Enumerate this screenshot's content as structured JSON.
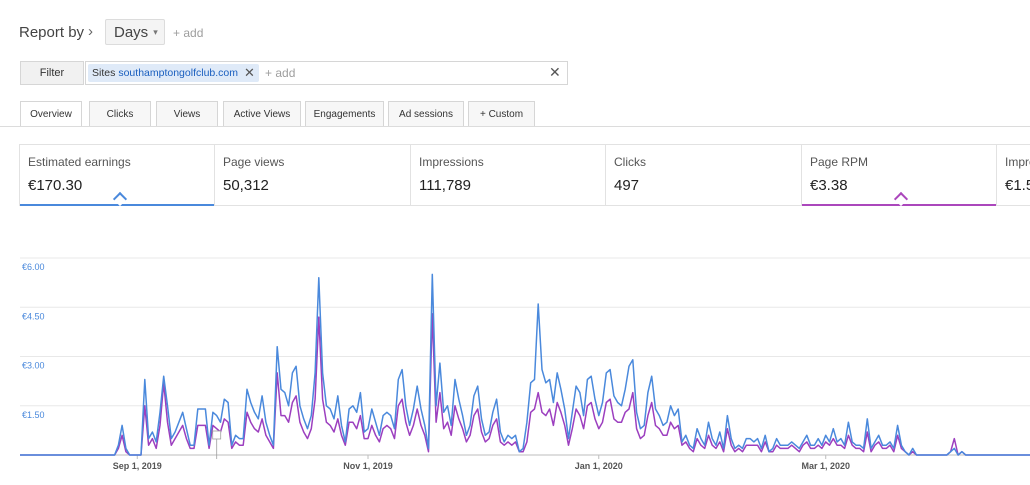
{
  "report": {
    "label": "Report by",
    "chevron": "›",
    "dimension": "Days",
    "caret": "▾",
    "add": "+ add"
  },
  "filter": {
    "button_label": "Filter",
    "chip_key": "Sites",
    "chip_value": "southamptongolfclub.com",
    "chip_remove": "✕",
    "add": "+ add",
    "clear": "✕"
  },
  "tabs": [
    {
      "label": "Overview",
      "active": true
    },
    {
      "label": "Clicks"
    },
    {
      "label": "Views"
    },
    {
      "label": "Active Views"
    },
    {
      "label": "Engagements"
    },
    {
      "label": "Ad sessions"
    },
    {
      "label": "+ Custom"
    }
  ],
  "cards": [
    {
      "label": "Estimated earnings",
      "value": "€170.30",
      "selected_color": "#4a89dc"
    },
    {
      "label": "Page views",
      "value": "50,312"
    },
    {
      "label": "Impressions",
      "value": "111,789"
    },
    {
      "label": "Clicks",
      "value": "497"
    },
    {
      "label": "Page RPM",
      "value": "€3.38",
      "selected_color": "#ab47bc"
    },
    {
      "label": "Impre",
      "value": "€1.5"
    }
  ],
  "colors": {
    "earnings": "#4a89dc",
    "rpm": "#9c3fbf",
    "grid": "#e8e8e8"
  },
  "chart_data": {
    "type": "line",
    "ylim": [
      0,
      6
    ],
    "yticks": [
      "€6.00",
      "€4.50",
      "€3.00",
      "€1.50"
    ],
    "ytick_values": [
      6,
      4.5,
      3,
      1.5
    ],
    "xticks": [
      "Sep 1, 2019",
      "Nov 1, 2019",
      "Jan 1, 2020",
      "Mar 1, 2020"
    ],
    "x_start": "2019-08-01",
    "x_end": "2020-03-24",
    "series": [
      {
        "values": [
          0,
          0,
          0,
          0,
          0,
          0,
          0,
          0,
          0,
          0,
          0,
          0,
          0,
          0,
          0,
          0,
          0,
          0,
          0,
          0,
          0,
          0,
          0,
          0,
          0,
          0,
          0.3,
          0.9,
          0.2,
          0,
          0,
          0,
          0,
          2.3,
          0.5,
          0.7,
          0.4,
          1.3,
          2.4,
          1.5,
          0.5,
          0.7,
          1.0,
          1.3,
          0.8,
          0.3,
          0.3,
          1.4,
          1.4,
          1.4,
          0.3,
          1.3,
          1.2,
          1.0,
          1.7,
          1.6,
          0.3,
          0.6,
          0.5,
          0.5,
          2.0,
          1.6,
          1.3,
          1.1,
          1.8,
          1.0,
          0.6,
          0.3,
          3.3,
          2.0,
          1.9,
          1.5,
          2.5,
          2.7,
          1.5,
          1.1,
          0.8,
          1.2,
          2.5,
          5.4,
          2.5,
          1.5,
          1.4,
          1.1,
          1.8,
          0.9,
          0.4,
          1.4,
          1.5,
          1.3,
          1.9,
          0.7,
          0.8,
          1.4,
          1.0,
          0.6,
          1.2,
          1.3,
          1.2,
          0.8,
          2.3,
          2.6,
          1.5,
          0.9,
          1.4,
          2.1,
          1.4,
          0.9,
          0.2,
          5.5,
          1.5,
          2.8,
          1.3,
          1.5,
          0.9,
          2.3,
          1.7,
          1.2,
          0.6,
          0.9,
          1.8,
          2.1,
          1.1,
          0.6,
          0.7,
          1.3,
          1.7,
          0.7,
          0.4,
          0.6,
          0.5,
          0.6,
          0.1,
          0.2,
          1.0,
          2.2,
          2.3,
          4.6,
          2.6,
          2.2,
          2.3,
          1.6,
          2.5,
          2.0,
          1.4,
          0.5,
          1.3,
          2.1,
          1.9,
          1.2,
          2.3,
          2.4,
          1.7,
          1.2,
          1.6,
          2.5,
          2.6,
          1.8,
          1.6,
          1.5,
          2.0,
          2.7,
          2.9,
          1.3,
          0.8,
          0.9,
          1.9,
          2.4,
          1.4,
          1.2,
          0.9,
          1.0,
          1.5,
          1.2,
          1.4,
          0.4,
          0.6,
          0.3,
          0.2,
          0.8,
          0.5,
          0.3,
          1.0,
          0.5,
          0.3,
          0.7,
          0.2,
          1.2,
          0.5,
          0.2,
          0.3,
          0.2,
          0.5,
          0.5,
          0.4,
          0.5,
          0.2,
          0.6,
          0.1,
          0.2,
          0.5,
          0.3,
          0.3,
          0.3,
          0.4,
          0.3,
          0.2,
          0.4,
          0.6,
          0.3,
          0.3,
          0.5,
          0.3,
          0.6,
          0.4,
          0.8,
          0.4,
          0.5,
          0.3,
          1.0,
          0.4,
          0.3,
          0.3,
          0.2,
          1.1,
          0.2,
          0.4,
          0.6,
          0.3,
          0.3,
          0.4,
          0.2,
          0.9,
          0.3,
          0.1,
          0,
          0.2,
          0,
          0,
          0,
          0,
          0,
          0,
          0,
          0,
          0,
          0.1,
          0.2,
          0,
          0.1,
          0,
          0,
          0,
          0,
          0,
          0,
          0,
          0,
          0,
          0,
          0,
          0,
          0,
          0,
          0,
          0,
          0,
          0
        ]
      },
      {
        "values": [
          0,
          0,
          0,
          0,
          0,
          0,
          0,
          0,
          0,
          0,
          0,
          0,
          0,
          0,
          0,
          0,
          0,
          0,
          0,
          0,
          0,
          0,
          0,
          0,
          0,
          0,
          0.2,
          0.6,
          0.1,
          0,
          0,
          0,
          0,
          1.5,
          0.3,
          0.5,
          0.2,
          0.9,
          2.2,
          1.0,
          0.3,
          0.5,
          0.7,
          0.9,
          0.5,
          0.2,
          0.2,
          0.9,
          0.9,
          0.9,
          0.2,
          0.9,
          0.8,
          0.7,
          1.1,
          1.0,
          0.2,
          0.4,
          0.3,
          0.3,
          1.3,
          1.0,
          0.8,
          0.7,
          1.1,
          0.6,
          0.4,
          0.2,
          2.5,
          1.2,
          1.2,
          1.0,
          1.6,
          1.8,
          1.0,
          0.7,
          0.5,
          0.8,
          1.7,
          4.2,
          1.7,
          1.0,
          0.9,
          0.7,
          1.1,
          0.6,
          0.3,
          1.0,
          1.0,
          0.8,
          1.2,
          0.5,
          0.5,
          0.9,
          0.6,
          0.4,
          0.8,
          0.9,
          0.8,
          0.5,
          1.5,
          1.7,
          1.0,
          0.6,
          0.9,
          1.4,
          0.9,
          0.6,
          0.1,
          4.3,
          1.0,
          1.9,
          0.8,
          1.0,
          0.6,
          1.5,
          1.1,
          0.8,
          0.4,
          0.6,
          1.2,
          1.4,
          0.7,
          0.4,
          0.5,
          0.9,
          1.1,
          0.4,
          0.3,
          0.4,
          0.3,
          0.4,
          0.1,
          0.1,
          0.4,
          1.3,
          1.4,
          1.9,
          1.3,
          1.2,
          1.4,
          0.9,
          1.6,
          1.3,
          0.9,
          0.3,
          0.8,
          1.4,
          1.2,
          0.8,
          1.5,
          1.6,
          1.1,
          0.8,
          1.0,
          1.6,
          1.7,
          1.1,
          1.0,
          1.0,
          1.3,
          1.4,
          1.9,
          0.8,
          0.5,
          0.6,
          1.2,
          1.6,
          0.9,
          0.8,
          0.6,
          0.6,
          1.0,
          0.8,
          0.9,
          0.3,
          0.4,
          0.2,
          0.1,
          0.5,
          0.3,
          0.2,
          0.6,
          0.3,
          0.2,
          0.4,
          0.1,
          0.8,
          0.3,
          0.1,
          0.2,
          0.1,
          0.3,
          0.3,
          0.3,
          0.3,
          0.1,
          0.4,
          0.1,
          0.1,
          0.3,
          0.2,
          0.2,
          0.2,
          0.3,
          0.2,
          0.1,
          0.3,
          0.4,
          0.2,
          0.2,
          0.3,
          0.2,
          0.4,
          0.3,
          0.5,
          0.3,
          0.3,
          0.2,
          0.6,
          0.3,
          0.2,
          0.2,
          0.1,
          0.7,
          0.1,
          0.3,
          0.4,
          0.2,
          0.2,
          0.3,
          0.1,
          0.6,
          0.2,
          0.1,
          0,
          0.1,
          0,
          0,
          0,
          0,
          0,
          0,
          0,
          0,
          0,
          0.1,
          0.5,
          0,
          0.1,
          0,
          0,
          0,
          0,
          0,
          0,
          0,
          0,
          0,
          0,
          0,
          0,
          0,
          0,
          0,
          0,
          0,
          0
        ]
      }
    ]
  }
}
